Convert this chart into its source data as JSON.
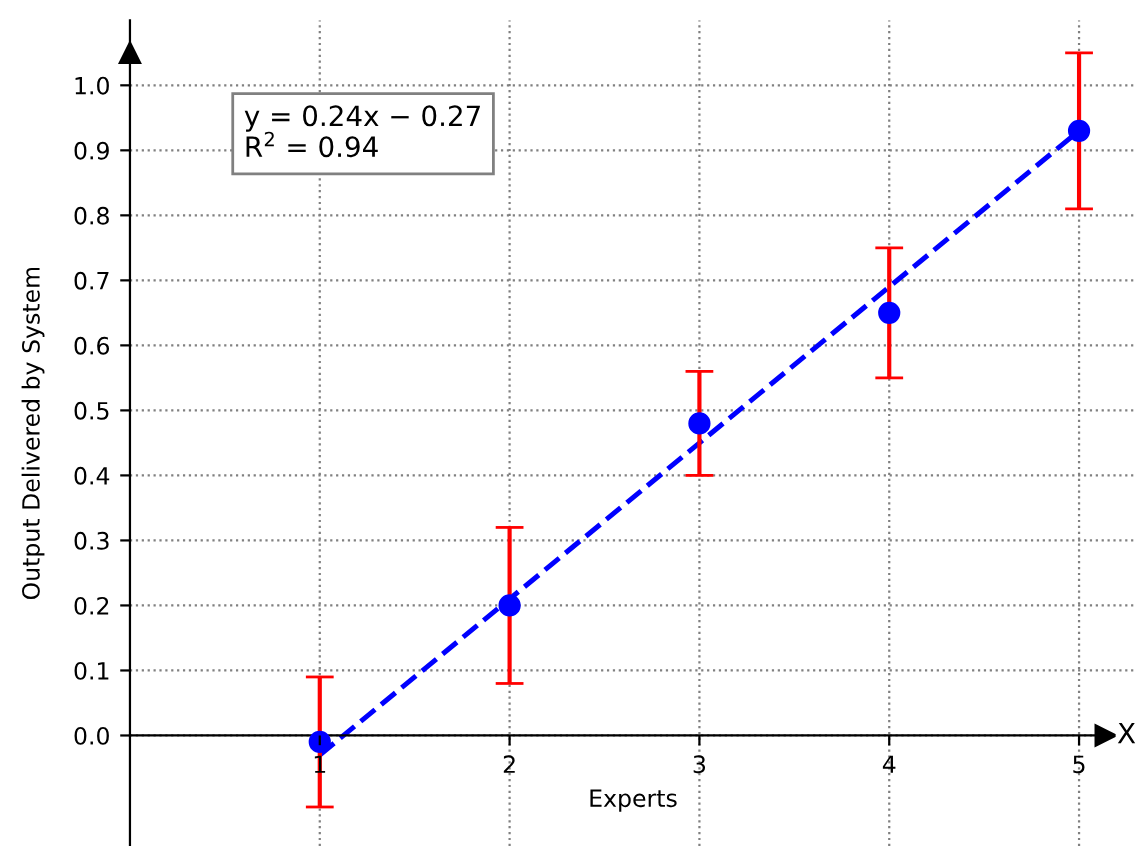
{
  "chart_data": {
    "type": "scatter",
    "xlabel": "Experts",
    "ylabel": "Output Delivered by System",
    "series": [
      {
        "color": "#0000ff",
        "marker": "circle",
        "x": [
          1,
          2,
          3,
          4,
          5
        ],
        "values": [
          -0.01,
          0.2,
          0.48,
          0.65,
          0.93
        ],
        "errors": [
          0.1,
          0.12,
          0.08,
          0.1,
          0.12
        ]
      },
      {
        "type": "line",
        "color": "#0000ff",
        "x": [
          1,
          5
        ],
        "values": [
          -0.03,
          0.93
        ],
        "line_style": "dashed",
        "marker": "none"
      }
    ],
    "annotations": [
      "y = 0.24x − 0.27\nR$^{2}$ = 0.94",
      "X"
    ],
    "xlim": [
      0,
      5.3
    ],
    "ylim": [
      -0.17,
      1.1
    ],
    "xticks": [
      1,
      2,
      3,
      4,
      5
    ],
    "yticks": [
      {
        "value": 0,
        "label": "0.0"
      },
      0.1,
      0.2,
      0.3,
      0.4,
      0.5,
      0.6,
      0.7,
      0.8,
      0.9,
      {
        "value": 1,
        "label": "1.0"
      }
    ],
    "grid": true,
    "legend": false
  }
}
